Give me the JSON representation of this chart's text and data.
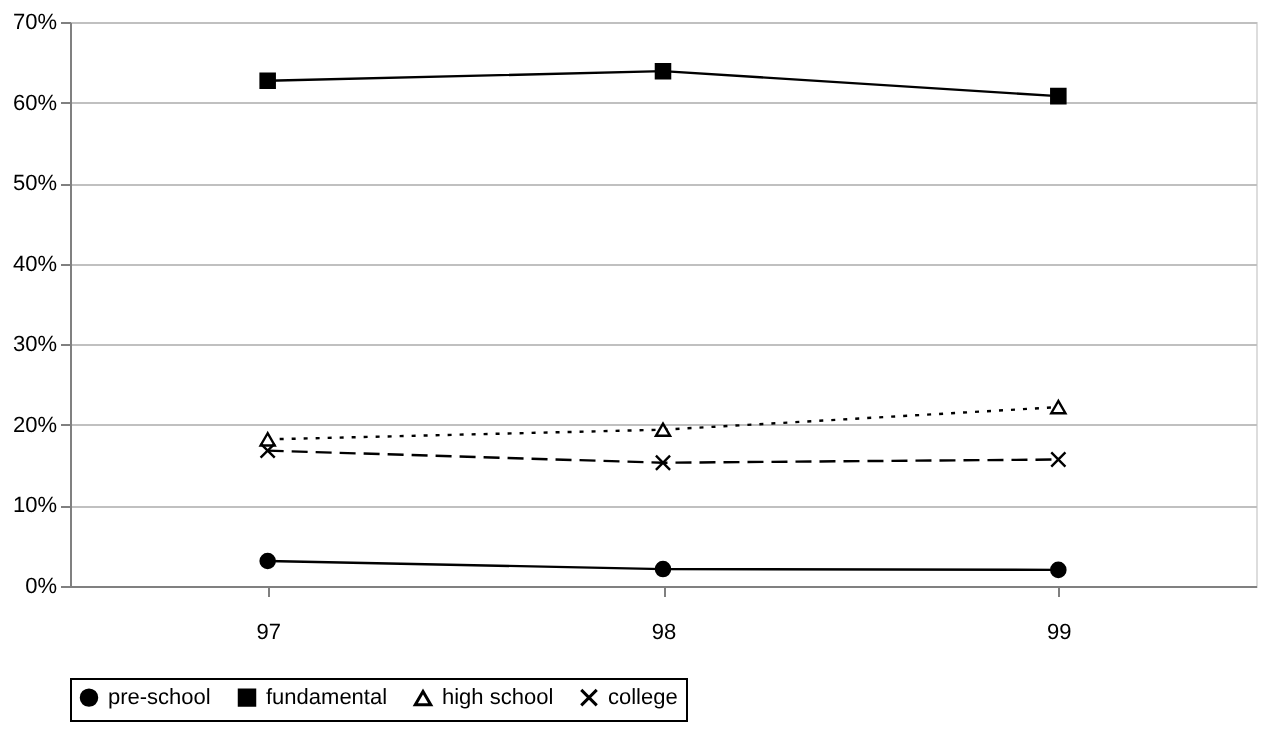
{
  "chart_data": {
    "type": "line",
    "categories": [
      "97",
      "98",
      "99"
    ],
    "series": [
      {
        "name": "pre-school",
        "color": "#000000",
        "marker": "circle",
        "line_style": "solid",
        "values": [
          3.1,
          2.1,
          2.0
        ]
      },
      {
        "name": "fundamental",
        "color": "#000000",
        "marker": "square",
        "line_style": "solid",
        "values": [
          62.7,
          63.9,
          60.8
        ]
      },
      {
        "name": "high school",
        "color": "#000000",
        "marker": "triangle",
        "line_style": "dotted",
        "values": [
          18.2,
          19.4,
          22.2
        ]
      },
      {
        "name": "college",
        "color": "#000000",
        "marker": "cross",
        "line_style": "dashed",
        "values": [
          16.8,
          15.3,
          15.7
        ]
      }
    ],
    "ylim": [
      0,
      70
    ],
    "yticks": [
      {
        "value": 0,
        "label": "0%"
      },
      {
        "value": 10,
        "label": "10%"
      },
      {
        "value": 20,
        "label": "20%"
      },
      {
        "value": 30,
        "label": "30%"
      },
      {
        "value": 40,
        "label": "40%"
      },
      {
        "value": 50,
        "label": "50%"
      },
      {
        "value": 60,
        "label": "60%"
      },
      {
        "value": 70,
        "label": "70%"
      }
    ],
    "grid": "y",
    "legend": "bottom"
  }
}
